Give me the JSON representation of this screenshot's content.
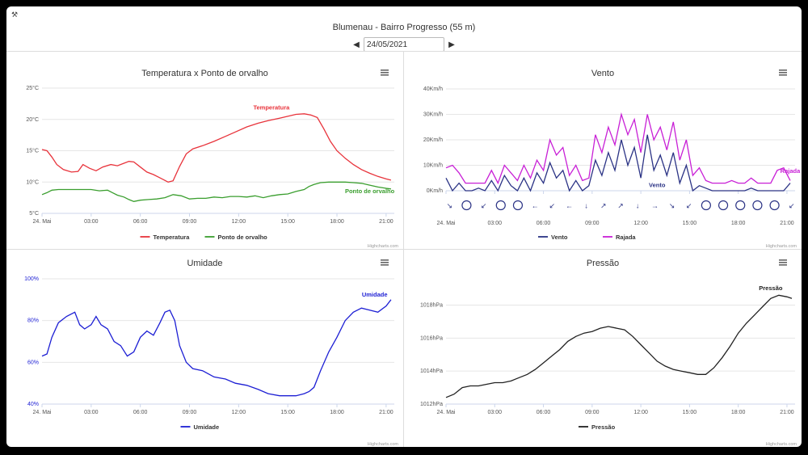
{
  "header": {
    "title": "Blumenau - Bairro Progresso (55 m)",
    "date": "24/05/2021",
    "prev_icon": "triangle-left",
    "next_icon": "triangle-right",
    "tool_icon": "wrench"
  },
  "credits": "Highcharts.com",
  "chart_data": [
    {
      "id": "temp",
      "type": "line",
      "title": "Temperatura x Ponto de orvalho",
      "x_ticks": [
        "24. Mai",
        "03:00",
        "06:00",
        "09:00",
        "12:00",
        "15:00",
        "18:00",
        "21:00"
      ],
      "x_tick_hours": [
        0,
        3,
        6,
        9,
        12,
        15,
        18,
        21
      ],
      "xlim": [
        0,
        21.5
      ],
      "y_ticks": [
        "5°C",
        "10°C",
        "15°C",
        "20°C",
        "25°C"
      ],
      "y_tick_values": [
        5,
        10,
        15,
        20,
        25
      ],
      "ylim": [
        5,
        25
      ],
      "series": [
        {
          "name": "Temperatura",
          "color": "#e8333b",
          "x": [
            0,
            0.3,
            0.6,
            0.9,
            1.3,
            1.8,
            2.2,
            2.5,
            2.9,
            3.3,
            3.7,
            4.2,
            4.6,
            5.0,
            5.3,
            5.6,
            6.0,
            6.4,
            6.8,
            7.1,
            7.4,
            7.7,
            8.0,
            8.4,
            8.8,
            9.2,
            9.8,
            10.5,
            11.2,
            11.8,
            12.5,
            13.2,
            13.8,
            14.5,
            15.0,
            15.5,
            16.0,
            16.4,
            16.8,
            17.2,
            17.6,
            18.0,
            18.5,
            19.0,
            19.5,
            20.0,
            20.5,
            21.0,
            21.3
          ],
          "values": [
            15.2,
            15.0,
            14.0,
            12.8,
            12.0,
            11.6,
            11.7,
            12.8,
            12.2,
            11.8,
            12.4,
            12.8,
            12.6,
            13.0,
            13.3,
            13.2,
            12.4,
            11.6,
            11.2,
            10.8,
            10.4,
            10.0,
            10.2,
            12.5,
            14.5,
            15.3,
            15.8,
            16.5,
            17.3,
            18.0,
            18.8,
            19.4,
            19.8,
            20.2,
            20.5,
            20.8,
            20.9,
            20.7,
            20.3,
            18.5,
            16.5,
            15.0,
            13.8,
            12.8,
            12.0,
            11.4,
            10.9,
            10.5,
            10.3
          ]
        },
        {
          "name": "Ponto de orvalho",
          "color": "#3a9e2e",
          "x": [
            0,
            0.3,
            0.6,
            1.0,
            1.5,
            2.0,
            2.5,
            3.0,
            3.5,
            4.0,
            4.3,
            4.6,
            5.0,
            5.3,
            5.6,
            6.0,
            6.5,
            7.0,
            7.5,
            8.0,
            8.5,
            9.0,
            9.5,
            10.0,
            10.5,
            11.0,
            11.5,
            12.0,
            12.5,
            13.0,
            13.5,
            14.0,
            14.5,
            15.0,
            15.5,
            16.0,
            16.3,
            16.6,
            17.0,
            17.5,
            18.0,
            18.5,
            19.0,
            19.5,
            20.0,
            20.5,
            21.0,
            21.3
          ],
          "values": [
            8.0,
            8.3,
            8.7,
            8.8,
            8.8,
            8.8,
            8.8,
            8.8,
            8.6,
            8.7,
            8.3,
            7.9,
            7.6,
            7.2,
            6.9,
            7.1,
            7.2,
            7.3,
            7.5,
            8.0,
            7.8,
            7.3,
            7.4,
            7.4,
            7.6,
            7.5,
            7.7,
            7.7,
            7.6,
            7.8,
            7.5,
            7.8,
            8.0,
            8.1,
            8.5,
            8.8,
            9.3,
            9.6,
            9.9,
            10.0,
            10.0,
            10.0,
            9.9,
            9.8,
            9.5,
            9.2,
            9.0,
            8.9
          ]
        }
      ]
    },
    {
      "id": "vento",
      "type": "line",
      "title": "Vento",
      "x_ticks": [
        "24. Mai",
        "03:00",
        "06:00",
        "09:00",
        "12:00",
        "15:00",
        "18:00",
        "21:00"
      ],
      "x_tick_hours": [
        0,
        3,
        6,
        9,
        12,
        15,
        18,
        21
      ],
      "xlim": [
        0,
        21.5
      ],
      "y_ticks": [
        "0Km/h",
        "10Km/h",
        "20Km/h",
        "30Km/h",
        "40Km/h"
      ],
      "y_tick_values": [
        0,
        10,
        20,
        30,
        40
      ],
      "ylim": [
        0,
        40
      ],
      "series": [
        {
          "name": "Vento",
          "color": "#2b3385",
          "x": [
            0,
            0.4,
            0.8,
            1.2,
            1.6,
            2.0,
            2.4,
            2.8,
            3.2,
            3.6,
            4.0,
            4.4,
            4.8,
            5.2,
            5.6,
            6.0,
            6.4,
            6.8,
            7.2,
            7.6,
            8.0,
            8.4,
            8.8,
            9.2,
            9.6,
            10.0,
            10.4,
            10.8,
            11.2,
            11.6,
            12.0,
            12.4,
            12.8,
            13.2,
            13.6,
            14.0,
            14.4,
            14.8,
            15.2,
            15.6,
            16.0,
            16.4,
            16.8,
            17.2,
            17.6,
            18.0,
            18.4,
            18.8,
            19.2,
            19.6,
            20.0,
            20.4,
            20.8,
            21.2
          ],
          "values": [
            5,
            0,
            3,
            0,
            0,
            1,
            0,
            4,
            0,
            6,
            2,
            0,
            5,
            0,
            7,
            3,
            11,
            5,
            8,
            0,
            4,
            0,
            2,
            12,
            6,
            15,
            8,
            20,
            10,
            17,
            5,
            22,
            8,
            14,
            6,
            15,
            3,
            10,
            0,
            2,
            1,
            0,
            0,
            0,
            0,
            0,
            0,
            1,
            0,
            0,
            0,
            0,
            0,
            3
          ]
        },
        {
          "name": "Rajada",
          "color": "#c81fd6",
          "x": [
            0,
            0.4,
            0.8,
            1.2,
            1.6,
            2.0,
            2.4,
            2.8,
            3.2,
            3.6,
            4.0,
            4.4,
            4.8,
            5.2,
            5.6,
            6.0,
            6.4,
            6.8,
            7.2,
            7.6,
            8.0,
            8.4,
            8.8,
            9.2,
            9.6,
            10.0,
            10.4,
            10.8,
            11.2,
            11.6,
            12.0,
            12.4,
            12.8,
            13.2,
            13.6,
            14.0,
            14.4,
            14.8,
            15.2,
            15.6,
            16.0,
            16.4,
            16.8,
            17.2,
            17.6,
            18.0,
            18.4,
            18.8,
            19.2,
            19.6,
            20.0,
            20.4,
            20.8,
            21.2
          ],
          "values": [
            9,
            10,
            7,
            3,
            3,
            3,
            3,
            8,
            3,
            10,
            7,
            4,
            10,
            5,
            12,
            8,
            20,
            14,
            17,
            6,
            10,
            4,
            5,
            22,
            15,
            25,
            18,
            30,
            22,
            28,
            15,
            30,
            20,
            25,
            16,
            27,
            12,
            20,
            6,
            9,
            4,
            3,
            3,
            3,
            4,
            3,
            3,
            5,
            3,
            3,
            3,
            8,
            9,
            4
          ]
        }
      ],
      "wind_direction_row": [
        "↘",
        "○",
        "↙",
        "○",
        "○",
        "←",
        "↙",
        "←",
        "↓",
        "↗",
        "↗",
        "↓",
        "→",
        "↘",
        "↙",
        "○",
        "○",
        "○",
        "○",
        "○",
        "↙"
      ]
    },
    {
      "id": "umidade",
      "type": "line",
      "title": "Umidade",
      "x_ticks": [
        "24. Mai",
        "03:00",
        "06:00",
        "09:00",
        "12:00",
        "15:00",
        "18:00",
        "21:00"
      ],
      "x_tick_hours": [
        0,
        3,
        6,
        9,
        12,
        15,
        18,
        21
      ],
      "xlim": [
        0,
        21.5
      ],
      "y_ticks": [
        "40%",
        "60%",
        "80%",
        "100%"
      ],
      "y_tick_values": [
        40,
        60,
        80,
        100
      ],
      "ylim": [
        40,
        100
      ],
      "series": [
        {
          "name": "Umidade",
          "color": "#1d1fd4",
          "x": [
            0,
            0.3,
            0.6,
            1.0,
            1.5,
            2.0,
            2.3,
            2.6,
            3.0,
            3.3,
            3.6,
            4.0,
            4.4,
            4.8,
            5.2,
            5.6,
            6.0,
            6.4,
            6.8,
            7.2,
            7.5,
            7.8,
            8.1,
            8.4,
            8.8,
            9.2,
            9.8,
            10.5,
            11.2,
            11.8,
            12.5,
            13.2,
            13.8,
            14.5,
            15.0,
            15.5,
            16.0,
            16.3,
            16.6,
            17.0,
            17.5,
            18.0,
            18.5,
            19.0,
            19.5,
            20.0,
            20.5,
            21.0,
            21.3
          ],
          "values": [
            63,
            64,
            72,
            79,
            82,
            84,
            78,
            76,
            78,
            82,
            78,
            76,
            70,
            68,
            63,
            65,
            72,
            75,
            73,
            79,
            84,
            85,
            80,
            68,
            60,
            57,
            56,
            53,
            52,
            50,
            49,
            47,
            45,
            44,
            44,
            44,
            45,
            46,
            48,
            56,
            65,
            72,
            80,
            84,
            86,
            85,
            84,
            87,
            90
          ]
        }
      ]
    },
    {
      "id": "pressao",
      "type": "line",
      "title": "Pressão",
      "x_ticks": [
        "24. Mai",
        "03:00",
        "06:00",
        "09:00",
        "12:00",
        "15:00",
        "18:00",
        "21:00"
      ],
      "x_tick_hours": [
        0,
        3,
        6,
        9,
        12,
        15,
        18,
        21
      ],
      "xlim": [
        0,
        21.5
      ],
      "y_ticks": [
        "1012hPa",
        "1014hPa",
        "1016hPa",
        "1018hPa"
      ],
      "y_tick_values": [
        1012,
        1014,
        1016,
        1018
      ],
      "ylim": [
        1012,
        1019.2
      ],
      "series": [
        {
          "name": "Pressão",
          "color": "#222222",
          "x": [
            0,
            0.5,
            1.0,
            1.5,
            2.0,
            2.5,
            3.0,
            3.5,
            4.0,
            4.5,
            5.0,
            5.5,
            6.0,
            6.5,
            7.0,
            7.5,
            8.0,
            8.5,
            9.0,
            9.5,
            10.0,
            10.5,
            11.0,
            11.5,
            12.0,
            12.5,
            13.0,
            13.5,
            14.0,
            14.5,
            15.0,
            15.5,
            16.0,
            16.5,
            17.0,
            17.5,
            18.0,
            18.5,
            19.0,
            19.5,
            20.0,
            20.5,
            21.0,
            21.3
          ],
          "values": [
            1012.4,
            1012.6,
            1013.0,
            1013.1,
            1013.1,
            1013.2,
            1013.3,
            1013.3,
            1013.4,
            1013.6,
            1013.8,
            1014.1,
            1014.5,
            1014.9,
            1015.3,
            1015.8,
            1016.1,
            1016.3,
            1016.4,
            1016.6,
            1016.7,
            1016.6,
            1016.5,
            1016.1,
            1015.6,
            1015.1,
            1014.6,
            1014.3,
            1014.1,
            1014.0,
            1013.9,
            1013.8,
            1013.8,
            1014.2,
            1014.8,
            1015.5,
            1016.3,
            1016.9,
            1017.4,
            1017.9,
            1018.4,
            1018.6,
            1018.5,
            1018.4
          ]
        }
      ]
    }
  ]
}
